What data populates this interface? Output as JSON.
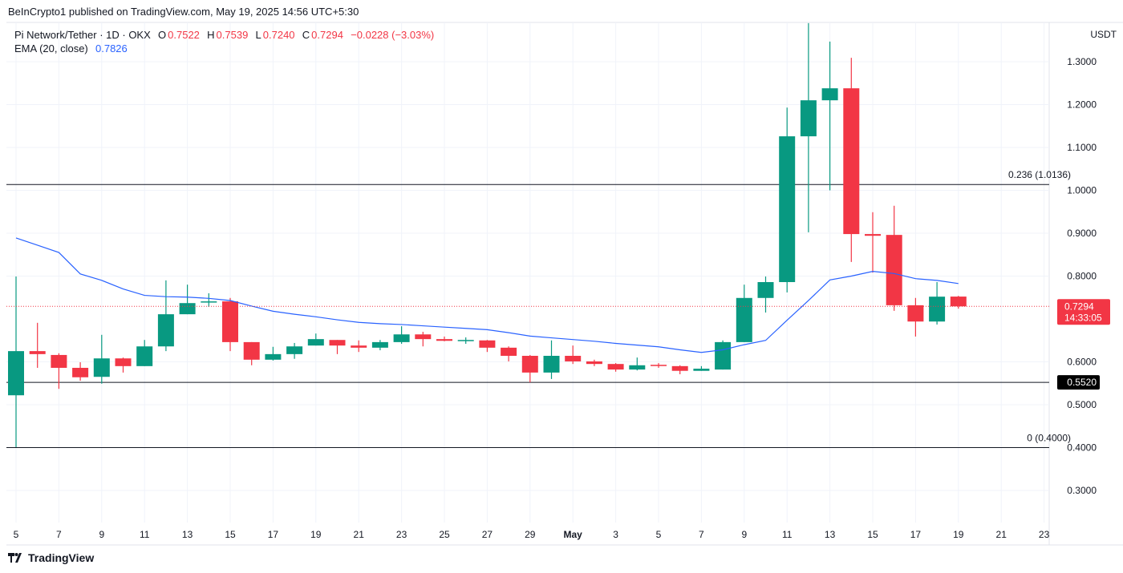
{
  "header": {
    "published": "BeInCrypto1 published on TradingView.com, May 19, 2025 14:56 UTC+5:30",
    "symbol": "Pi Network/Tether · 1D · OKX",
    "o_label": "O",
    "o": "0.7522",
    "h_label": "H",
    "h": "0.7539",
    "l_label": "L",
    "l": "0.7240",
    "c_label": "C",
    "c": "0.7294",
    "change": "−0.0228 (−3.03%)",
    "ema_label": "EMA (20, close)",
    "ema_value": "0.7826"
  },
  "currency": "USDT",
  "footer": {
    "logo_text": "TradingView"
  },
  "colors": {
    "up": "#089981",
    "down": "#f23645",
    "ema": "#2962ff",
    "level": "#131722"
  },
  "chart_data": {
    "type": "candlestick",
    "x_tick_labels": [
      "5",
      "7",
      "9",
      "11",
      "13",
      "15",
      "17",
      "19",
      "21",
      "23",
      "25",
      "27",
      "29",
      "May",
      "3",
      "5",
      "7",
      "9",
      "11",
      "13",
      "15",
      "17",
      "19",
      "21",
      "23"
    ],
    "y_tick_labels": [
      "1.3000",
      "1.2000",
      "1.1000",
      "1.0000",
      "0.9000",
      "0.8000",
      "0.6000",
      "0.5000",
      "0.4000",
      "0.3000"
    ],
    "ylim": [
      0.22,
      1.42
    ],
    "grid": true,
    "dates": [
      "Apr 5",
      "Apr 6",
      "Apr 7",
      "Apr 8",
      "Apr 9",
      "Apr 10",
      "Apr 11",
      "Apr 12",
      "Apr 13",
      "Apr 14",
      "Apr 15",
      "Apr 16",
      "Apr 17",
      "Apr 18",
      "Apr 19",
      "Apr 20",
      "Apr 21",
      "Apr 22",
      "Apr 23",
      "Apr 24",
      "Apr 25",
      "Apr 26",
      "Apr 27",
      "Apr 28",
      "Apr 29",
      "Apr 30",
      "May 1",
      "May 2",
      "May 3",
      "May 4",
      "May 5",
      "May 6",
      "May 7",
      "May 8",
      "May 9",
      "May 10",
      "May 11",
      "May 12",
      "May 13",
      "May 14",
      "May 15",
      "May 16",
      "May 17",
      "May 18",
      "May 19"
    ],
    "ohlc": [
      [
        0.522,
        0.799,
        0.401,
        0.625
      ],
      [
        0.625,
        0.691,
        0.586,
        0.618
      ],
      [
        0.616,
        0.62,
        0.537,
        0.586
      ],
      [
        0.586,
        0.599,
        0.556,
        0.564
      ],
      [
        0.565,
        0.663,
        0.549,
        0.608
      ],
      [
        0.608,
        0.61,
        0.575,
        0.59
      ],
      [
        0.59,
        0.651,
        0.59,
        0.636
      ],
      [
        0.636,
        0.79,
        0.625,
        0.711
      ],
      [
        0.711,
        0.78,
        0.711,
        0.737
      ],
      [
        0.739,
        0.76,
        0.728,
        0.741
      ],
      [
        0.741,
        0.749,
        0.625,
        0.646
      ],
      [
        0.646,
        0.646,
        0.592,
        0.605
      ],
      [
        0.605,
        0.635,
        0.603,
        0.618
      ],
      [
        0.618,
        0.644,
        0.607,
        0.636
      ],
      [
        0.638,
        0.666,
        0.638,
        0.653
      ],
      [
        0.651,
        0.651,
        0.618,
        0.638
      ],
      [
        0.638,
        0.65,
        0.623,
        0.633
      ],
      [
        0.633,
        0.651,
        0.627,
        0.646
      ],
      [
        0.646,
        0.683,
        0.642,
        0.664
      ],
      [
        0.664,
        0.67,
        0.636,
        0.653
      ],
      [
        0.653,
        0.659,
        0.648,
        0.649
      ],
      [
        0.65,
        0.657,
        0.642,
        0.651
      ],
      [
        0.65,
        0.651,
        0.623,
        0.633
      ],
      [
        0.633,
        0.636,
        0.601,
        0.614
      ],
      [
        0.614,
        0.616,
        0.552,
        0.575
      ],
      [
        0.575,
        0.65,
        0.56,
        0.614
      ],
      [
        0.614,
        0.638,
        0.595,
        0.601
      ],
      [
        0.601,
        0.605,
        0.59,
        0.595
      ],
      [
        0.595,
        0.597,
        0.577,
        0.582
      ],
      [
        0.582,
        0.61,
        0.58,
        0.592
      ],
      [
        0.593,
        0.597,
        0.586,
        0.591
      ],
      [
        0.59,
        0.592,
        0.571,
        0.579
      ],
      [
        0.579,
        0.59,
        0.579,
        0.584
      ],
      [
        0.582,
        0.65,
        0.582,
        0.646
      ],
      [
        0.646,
        0.78,
        0.646,
        0.749
      ],
      [
        0.749,
        0.799,
        0.715,
        0.786
      ],
      [
        0.786,
        1.193,
        0.762,
        1.126
      ],
      [
        1.126,
        1.39,
        0.902,
        1.21
      ],
      [
        1.21,
        1.347,
        1.0,
        1.238
      ],
      [
        1.238,
        1.309,
        0.833,
        0.898
      ],
      [
        0.898,
        0.949,
        0.808,
        0.894
      ],
      [
        0.896,
        0.964,
        0.719,
        0.732
      ],
      [
        0.732,
        0.749,
        0.659,
        0.694
      ],
      [
        0.694,
        0.786,
        0.687,
        0.752
      ],
      [
        0.7522,
        0.7539,
        0.724,
        0.7294
      ]
    ],
    "series": [
      {
        "name": "EMA (20, close)",
        "values": [
          0.889,
          0.872,
          0.855,
          0.805,
          0.79,
          0.77,
          0.755,
          0.752,
          0.751,
          0.748,
          0.743,
          0.73,
          0.718,
          0.711,
          0.705,
          0.698,
          0.692,
          0.689,
          0.687,
          0.684,
          0.681,
          0.678,
          0.675,
          0.668,
          0.66,
          0.656,
          0.652,
          0.648,
          0.643,
          0.639,
          0.635,
          0.628,
          0.622,
          0.628,
          0.64,
          0.65,
          0.697,
          0.743,
          0.791,
          0.8,
          0.811,
          0.806,
          0.794,
          0.79,
          0.7826
        ]
      }
    ],
    "levels": [
      {
        "label": "0.236 (1.0136)",
        "value": 1.0136
      },
      {
        "label": "0.5520",
        "value": 0.552,
        "axis_badge": true
      },
      {
        "label": "0 (0.4000)",
        "value": 0.4
      }
    ],
    "last_price": {
      "value": 0.7294,
      "label": "0.7294",
      "countdown": "14:33:05"
    }
  }
}
